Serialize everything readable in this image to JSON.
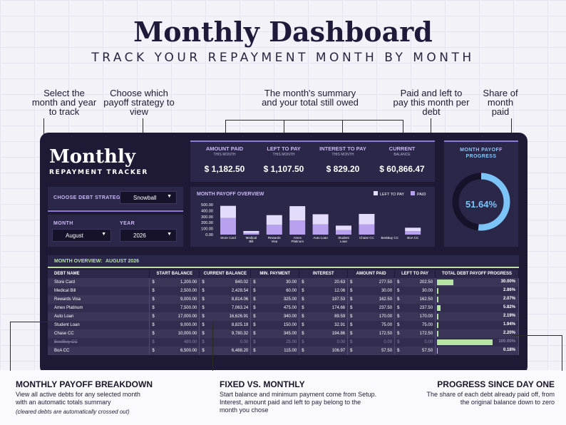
{
  "header": {
    "title": "Monthly Dashboard",
    "subtitle": "TRACK YOUR REPAYMENT MONTH BY MONTH"
  },
  "annotations": {
    "select_month": "Select the month and year to track",
    "choose_strategy": "Choose which payoff strategy to view",
    "summary": "The month's summary and your total still owed",
    "paid_left": "Paid and left to pay this month per debt",
    "share": "Share of month paid"
  },
  "logo": {
    "main": "Monthly",
    "sub": "REPAYMENT TRACKER"
  },
  "controls": {
    "strategy_label": "CHOOSE DEBT STRATEGY",
    "strategy_value": "Snowball",
    "month_label": "MONTH",
    "month_value": "August",
    "year_label": "YEAR",
    "year_value": "2026"
  },
  "kpis": [
    {
      "title": "AMOUNT PAID",
      "sub": "THIS MONTH",
      "value": "$ 1,182.50"
    },
    {
      "title": "LEFT TO PAY",
      "sub": "THIS MONTH",
      "value": "$ 1,107.50"
    },
    {
      "title": "INTEREST TO PAY",
      "sub": "THIS MONTH",
      "value": "$ 829.20"
    },
    {
      "title": "CURRENT",
      "sub": "BALANCE",
      "value": "$ 60,866.47"
    }
  ],
  "progress": {
    "title_line1": "MONTH PAYOFF",
    "title_line2": "PROGRESS",
    "value_text": "51.64%",
    "value": 51.64
  },
  "chart_data": {
    "type": "bar",
    "title": "MONTH PAYOFF OVERVIEW",
    "categories": [
      "Store Card",
      "Medical Bill",
      "Rewards Visa",
      "Amex Platinum",
      "Auto Loan",
      "Student Loan",
      "Chase CC",
      "BestBuy CC",
      "BoA CC"
    ],
    "series": [
      {
        "name": "LEFT TO PAY",
        "values": [
          202.5,
          30,
          162.5,
          237.5,
          170,
          75,
          172.5,
          0,
          57.5
        ]
      },
      {
        "name": "PAID",
        "values": [
          277.5,
          30,
          162.5,
          237.5,
          170,
          75,
          172.5,
          0,
          57.5
        ]
      }
    ],
    "y_ticks": [
      "500.00",
      "400.00",
      "300.00",
      "200.00",
      "100.00",
      "0.00"
    ],
    "ylim": [
      0,
      500
    ],
    "stacked": true,
    "colors": {
      "LEFT TO PAY": "#e4dcfb",
      "PAID": "#b8a2f0"
    },
    "legend": "top-right"
  },
  "overview": {
    "label": "MONTH OVERVIEW:",
    "month": "AUGUST 2026",
    "columns": [
      "DEBT NAME",
      "START BALANCE",
      "CURRENT BALANCE",
      "MIN. PAYMENT",
      "INTEREST",
      "AMOUNT PAID",
      "LEFT TO PAY",
      "TOTAL DEBT PAYOFF PROGRESS"
    ],
    "currency": "$",
    "rows": [
      {
        "name": "Store Card",
        "start": "1,200.00",
        "current": "840.02",
        "min": "30.00",
        "interest": "20.63",
        "paid": "277.50",
        "left": "202.50",
        "progress_text": "30.00%",
        "progress": 30.0,
        "crossed": false
      },
      {
        "name": "Medical Bill",
        "start": "2,500.00",
        "current": "2,428.54",
        "min": "60.00",
        "interest": "12.06",
        "paid": "30.00",
        "left": "30.00",
        "progress_text": "2.86%",
        "progress": 2.86,
        "crossed": false
      },
      {
        "name": "Rewards Visa",
        "start": "9,000.00",
        "current": "8,814.06",
        "min": "325.00",
        "interest": "197.53",
        "paid": "162.50",
        "left": "162.50",
        "progress_text": "2.07%",
        "progress": 2.07,
        "crossed": false
      },
      {
        "name": "Amex Platinum",
        "start": "7,500.00",
        "current": "7,063.24",
        "min": "475.00",
        "interest": "174.66",
        "paid": "237.50",
        "left": "237.50",
        "progress_text": "5.82%",
        "progress": 5.82,
        "crossed": false
      },
      {
        "name": "Auto Loan",
        "start": "17,000.00",
        "current": "16,626.91",
        "min": "340.00",
        "interest": "89.59",
        "paid": "170.00",
        "left": "170.00",
        "progress_text": "2.19%",
        "progress": 2.19,
        "crossed": false
      },
      {
        "name": "Student Loan",
        "start": "9,000.00",
        "current": "8,825.19",
        "min": "150.00",
        "interest": "32.91",
        "paid": "75.00",
        "left": "75.00",
        "progress_text": "1.94%",
        "progress": 1.94,
        "crossed": false
      },
      {
        "name": "Chase CC",
        "start": "10,000.00",
        "current": "9,780.32",
        "min": "345.00",
        "interest": "194.86",
        "paid": "172.50",
        "left": "172.50",
        "progress_text": "2.20%",
        "progress": 2.2,
        "crossed": false
      },
      {
        "name": "BestBuy CC",
        "start": "480.00",
        "current": "0.00",
        "min": "25.00",
        "interest": "0.00",
        "paid": "0.00",
        "left": "0.00",
        "progress_text": "100.00%",
        "progress": 100.0,
        "crossed": true
      },
      {
        "name": "BoA CC",
        "start": "6,500.00",
        "current": "6,488.20",
        "min": "115.00",
        "interest": "106.97",
        "paid": "57.50",
        "left": "57.50",
        "progress_text": "0.18%",
        "progress": 0.18,
        "crossed": false
      }
    ]
  },
  "footer": {
    "col1_title": "MONTHLY PAYOFF BREAKDOWN",
    "col1_text": "View all active debts for any selected month with an automatic totals summary",
    "col1_note": "(cleared debts are automatically crossed out)",
    "col2_title": "FIXED VS. MONTHLY",
    "col2_text": "Start balance and minimum payment come from Setup. Interest, amount paid and left to pay belong to the month you chose",
    "col3_title": "PROGRESS SINCE DAY ONE",
    "col3_text": "The share of each debt already paid off, from the original balance down to zero"
  }
}
